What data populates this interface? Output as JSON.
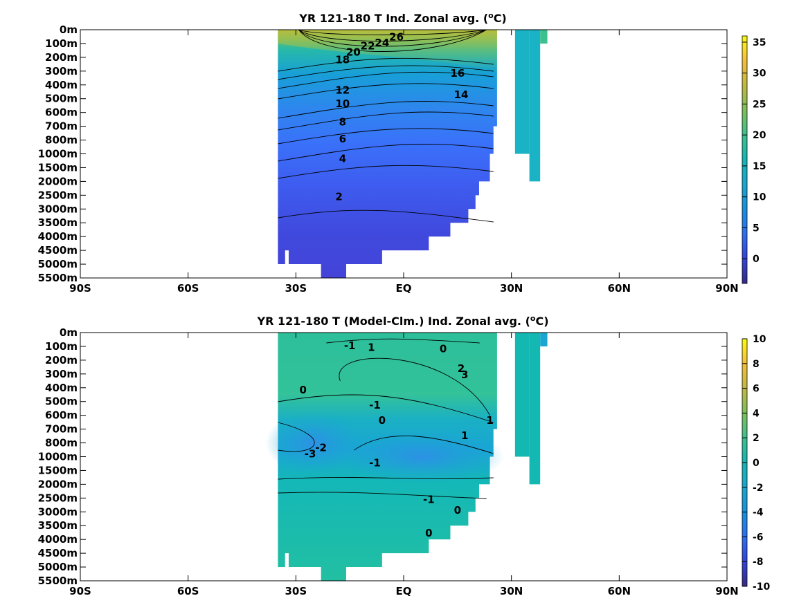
{
  "chart_data": [
    {
      "type": "heatmap",
      "title": "YR 121-180 T Ind. Zonal avg. (",
      "title_sup": "o",
      "title_end": "C)",
      "x_ticks": [
        "90S",
        "60S",
        "30S",
        "EQ",
        "30N",
        "60N",
        "90N"
      ],
      "x_tick_values": [
        -90,
        -60,
        -30,
        0,
        30,
        60,
        90
      ],
      "y_ticks": [
        "0m",
        "100m",
        "200m",
        "300m",
        "400m",
        "500m",
        "600m",
        "700m",
        "800m",
        "1000m",
        "1500m",
        "2000m",
        "2500m",
        "3000m",
        "3500m",
        "4000m",
        "4500m",
        "5000m",
        "5500m"
      ],
      "colorbar_ticks": [
        "35",
        "30",
        "25",
        "20",
        "15",
        "10",
        "5",
        "0"
      ],
      "colorbar_values": [
        35,
        30,
        25,
        20,
        15,
        10,
        5,
        0
      ],
      "clim": [
        -4,
        36
      ],
      "main_basin": {
        "lat_start": -35,
        "column_bottoms": [
          [
            -35,
            -33,
            5000
          ],
          [
            -33,
            -32,
            4500
          ],
          [
            -32,
            -23,
            5000
          ],
          [
            -23,
            -16,
            5500
          ],
          [
            -16,
            -6,
            5000
          ],
          [
            -6,
            7,
            4500
          ],
          [
            7,
            13,
            4000
          ],
          [
            13,
            18,
            3500
          ],
          [
            18,
            20,
            3000
          ],
          [
            20,
            21,
            2500
          ],
          [
            21,
            24,
            2000
          ],
          [
            24,
            25,
            1000
          ],
          [
            25,
            26,
            700
          ]
        ],
        "surface_max": 28
      },
      "north_column_a": {
        "lat_range": [
          31,
          35
        ],
        "bottom_depth": 1000
      },
      "north_column_b": {
        "lat_range": [
          35,
          38
        ],
        "bottom_depth": 2000
      },
      "contour_labels": [
        "26",
        "24",
        "22",
        "20",
        "18",
        "16",
        "14",
        "12",
        "10",
        "8",
        "6",
        "4",
        "2"
      ]
    },
    {
      "type": "heatmap",
      "title": "YR 121-180 T (Model-Clm.) Ind. Zonal avg. (",
      "title_sup": "o",
      "title_end": "C)",
      "x_ticks": [
        "90S",
        "60S",
        "30S",
        "EQ",
        "30N",
        "60N",
        "90N"
      ],
      "x_tick_values": [
        -90,
        -60,
        -30,
        0,
        30,
        60,
        90
      ],
      "y_ticks": [
        "0m",
        "100m",
        "200m",
        "300m",
        "400m",
        "500m",
        "600m",
        "700m",
        "800m",
        "1000m",
        "1500m",
        "2000m",
        "2500m",
        "3000m",
        "3500m",
        "4000m",
        "4500m",
        "5000m",
        "5500m"
      ],
      "colorbar_ticks": [
        "10",
        "8",
        "6",
        "4",
        "2",
        "0",
        "-2",
        "-4",
        "-6",
        "-8",
        "-10"
      ],
      "colorbar_values": [
        10,
        8,
        6,
        4,
        2,
        0,
        -2,
        -4,
        -6,
        -8,
        -10
      ],
      "clim": [
        -10,
        10
      ],
      "contour_labels": [
        "-1",
        "0",
        "-1",
        "1",
        "3",
        "2",
        "0",
        "1",
        "0",
        "1",
        "-2",
        "-3",
        "-1",
        "-1",
        "0",
        "0"
      ]
    }
  ]
}
